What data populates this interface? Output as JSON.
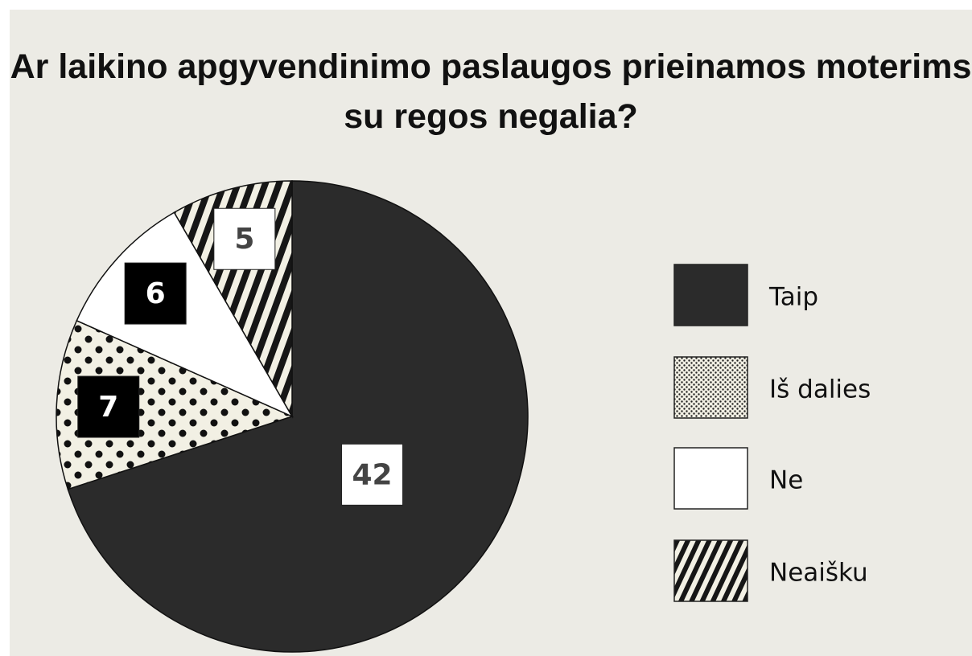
{
  "chart_data": {
    "type": "pie",
    "title": "Ar laikino apgyvendinimo paslaugos prieinamos moterims su regos negalia?",
    "categories": [
      "Taip",
      "Iš dalies",
      "Ne",
      "Neaišku"
    ],
    "values": [
      42,
      7,
      6,
      5
    ],
    "colors": [
      "#2b2b2b",
      "#f2f0e4",
      "#ffffff",
      "#f2f0e4"
    ],
    "patterns": [
      "solid",
      "dots",
      "solid",
      "stripes"
    ],
    "label_colors": [
      "#ffffff",
      "#000000",
      "#000000",
      "#ffffff"
    ],
    "legend": "right"
  }
}
